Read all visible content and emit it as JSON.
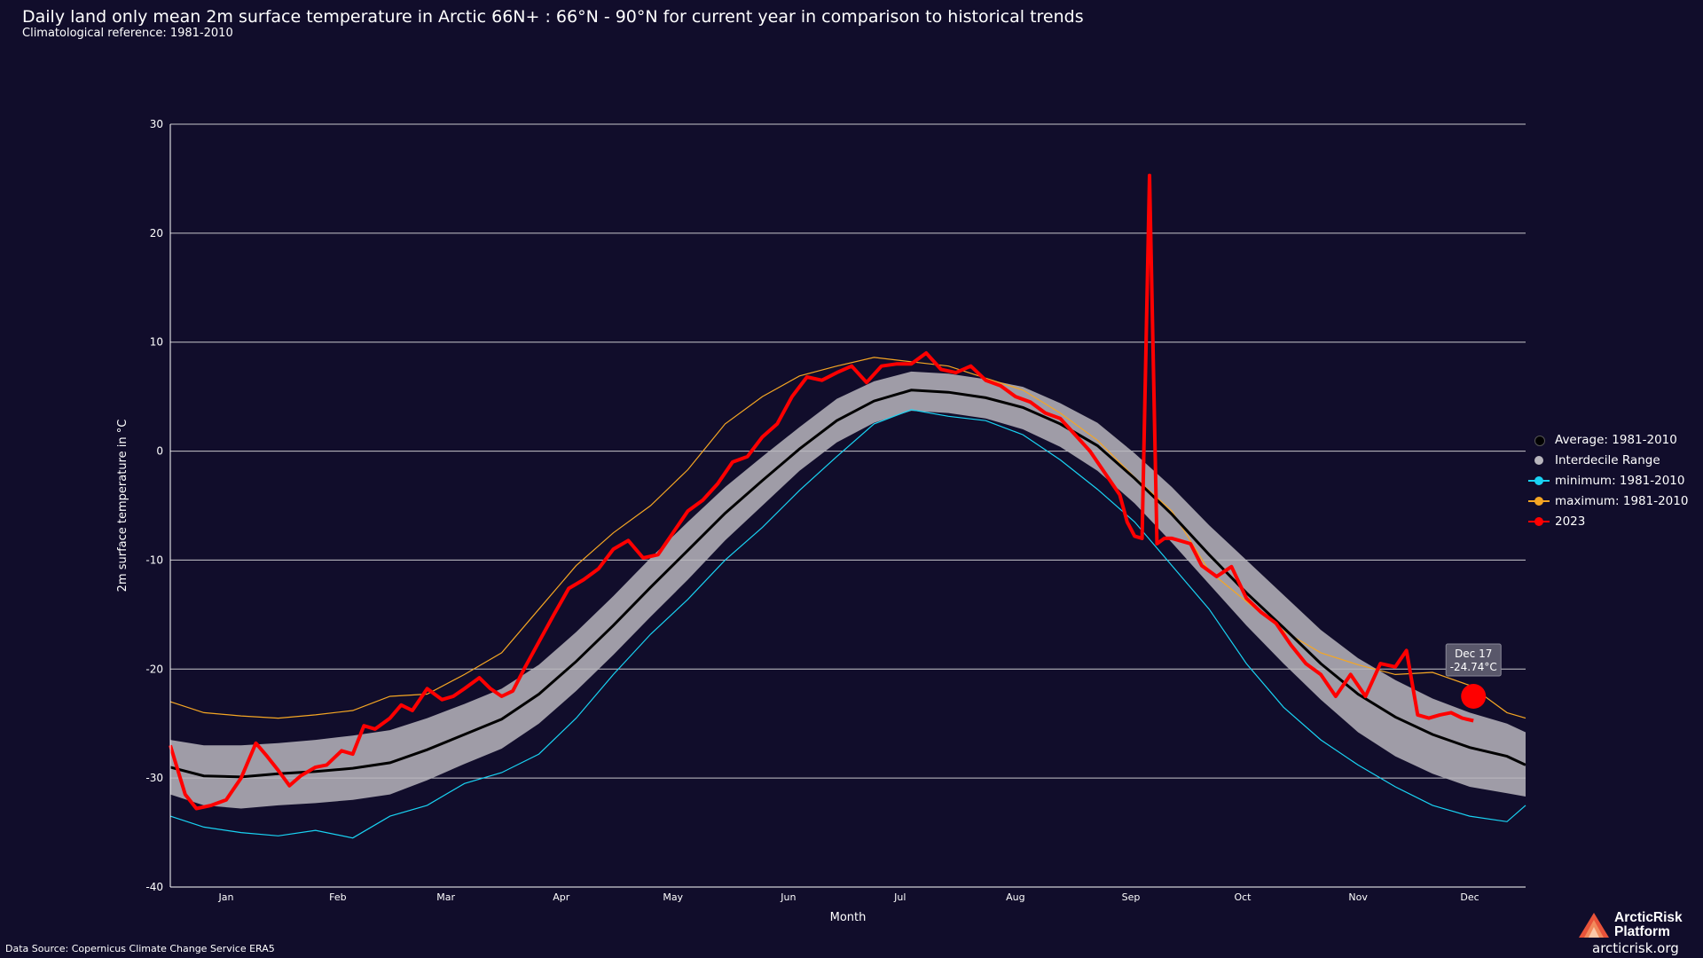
{
  "header": {
    "title": "Daily land only mean 2m surface temperature in Arctic 66N+ : 66°N - 90°N for current year in comparison to historical trends",
    "subtitle": "Climatological reference: 1981-2010"
  },
  "legend": [
    {
      "label": "Average: 1981-2010",
      "color": "#000000",
      "style": "dot"
    },
    {
      "label": "Interdecile Range",
      "color": "#b8b6bd",
      "style": "dot"
    },
    {
      "label": "minimum: 1981-2010",
      "color": "#19d3f3",
      "style": "dash-dot"
    },
    {
      "label": "maximum: 1981-2010",
      "color": "#f5a623",
      "style": "dash-dot"
    },
    {
      "label": "2023",
      "color": "#ff0000",
      "style": "dash-dot"
    }
  ],
  "footer": {
    "source": "Data Source: Copernicus Climate Change Service ERA5",
    "brand_line1": "ArcticRisk",
    "brand_line2": "Platform",
    "url": "arcticrisk.org"
  },
  "tooltip": {
    "date": "Dec 17",
    "value": "-24.74°C"
  },
  "chart_data": {
    "type": "line",
    "xlabel": "Month",
    "ylabel": "2m surface temperature in °C",
    "ylim": [
      -40,
      30
    ],
    "yticks": [
      -40,
      -30,
      -20,
      -10,
      0,
      10,
      20,
      30
    ],
    "xlim_day": [
      1,
      365
    ],
    "month_ticks": [
      {
        "label": "Jan",
        "day": 16
      },
      {
        "label": "Feb",
        "day": 46
      },
      {
        "label": "Mar",
        "day": 75
      },
      {
        "label": "Apr",
        "day": 106
      },
      {
        "label": "May",
        "day": 136
      },
      {
        "label": "Jun",
        "day": 167
      },
      {
        "label": "Jul",
        "day": 197
      },
      {
        "label": "Aug",
        "day": 228
      },
      {
        "label": "Sep",
        "day": 259
      },
      {
        "label": "Oct",
        "day": 289
      },
      {
        "label": "Nov",
        "day": 320
      },
      {
        "label": "Dec",
        "day": 350
      }
    ],
    "colors": {
      "average": "#000000",
      "band": "#b8b6bd",
      "minimum": "#19d3f3",
      "maximum": "#f5a623",
      "current": "#ff0000",
      "grid": "#e8e8e8"
    },
    "series": [
      {
        "name": "Average: 1981-2010",
        "x": [
          1,
          10,
          20,
          30,
          40,
          50,
          60,
          70,
          80,
          90,
          100,
          110,
          120,
          130,
          140,
          150,
          160,
          170,
          180,
          190,
          200,
          210,
          220,
          230,
          240,
          250,
          260,
          270,
          280,
          290,
          300,
          310,
          320,
          330,
          340,
          350,
          360,
          365
        ],
        "values": [
          -29,
          -29.8,
          -29.9,
          -29.6,
          -29.4,
          -29.1,
          -28.6,
          -27.4,
          -26,
          -24.6,
          -22.3,
          -19.3,
          -16,
          -12.5,
          -9.1,
          -5.7,
          -2.7,
          0.2,
          2.8,
          4.6,
          5.6,
          5.4,
          4.9,
          4,
          2.5,
          0.5,
          -2.5,
          -5.8,
          -9.5,
          -13,
          -16.2,
          -19.5,
          -22.3,
          -24.4,
          -26,
          -27.2,
          -28,
          -28.8
        ]
      },
      {
        "name": "Interdecile Range (lower)",
        "x": [
          1,
          10,
          20,
          30,
          40,
          50,
          60,
          70,
          80,
          90,
          100,
          110,
          120,
          130,
          140,
          150,
          160,
          170,
          180,
          190,
          200,
          210,
          220,
          230,
          240,
          250,
          260,
          270,
          280,
          290,
          300,
          310,
          320,
          330,
          340,
          350,
          360,
          365
        ],
        "values": [
          -31.5,
          -32.5,
          -32.8,
          -32.5,
          -32.3,
          -32,
          -31.5,
          -30.2,
          -28.7,
          -27.3,
          -25,
          -22,
          -18.7,
          -15.2,
          -11.8,
          -8.2,
          -5,
          -1.8,
          0.8,
          2.6,
          3.7,
          3.5,
          3,
          2,
          0.4,
          -1.8,
          -4.8,
          -8.4,
          -12.2,
          -16,
          -19.5,
          -22.8,
          -25.8,
          -28,
          -29.6,
          -30.8,
          -31.4,
          -31.7
        ]
      },
      {
        "name": "Interdecile Range (upper)",
        "x": [
          1,
          10,
          20,
          30,
          40,
          50,
          60,
          70,
          80,
          90,
          100,
          110,
          120,
          130,
          140,
          150,
          160,
          170,
          180,
          190,
          200,
          210,
          220,
          230,
          240,
          250,
          260,
          270,
          280,
          290,
          300,
          310,
          320,
          330,
          340,
          350,
          360,
          365
        ],
        "values": [
          -26.5,
          -27,
          -27,
          -26.8,
          -26.5,
          -26.1,
          -25.6,
          -24.5,
          -23.2,
          -21.8,
          -19.6,
          -16.6,
          -13.3,
          -9.8,
          -6.5,
          -3.3,
          -0.5,
          2.2,
          4.8,
          6.4,
          7.3,
          7.1,
          6.6,
          5.9,
          4.4,
          2.6,
          -0.2,
          -3.3,
          -6.8,
          -10,
          -13.2,
          -16.4,
          -19,
          -21,
          -22.7,
          -24,
          -25,
          -25.8
        ]
      },
      {
        "name": "minimum: 1981-2010",
        "x": [
          1,
          10,
          20,
          30,
          40,
          50,
          60,
          70,
          80,
          90,
          100,
          110,
          120,
          130,
          140,
          150,
          160,
          170,
          180,
          190,
          200,
          210,
          220,
          230,
          240,
          250,
          260,
          270,
          280,
          290,
          300,
          310,
          320,
          330,
          340,
          350,
          360,
          365
        ],
        "values": [
          -33.5,
          -34.5,
          -35,
          -35.3,
          -34.8,
          -35.5,
          -33.5,
          -32.5,
          -30.5,
          -29.5,
          -27.8,
          -24.5,
          -20.5,
          -16.8,
          -13.6,
          -10,
          -7,
          -3.6,
          -0.5,
          2.5,
          3.8,
          3.2,
          2.8,
          1.5,
          -0.8,
          -3.5,
          -6.5,
          -10.5,
          -14.5,
          -19.5,
          -23.5,
          -26.5,
          -28.8,
          -30.8,
          -32.5,
          -33.5,
          -34,
          -32.5
        ]
      },
      {
        "name": "maximum: 1981-2010",
        "x": [
          1,
          10,
          20,
          30,
          40,
          50,
          60,
          70,
          80,
          90,
          100,
          110,
          120,
          130,
          140,
          150,
          160,
          170,
          180,
          190,
          200,
          210,
          220,
          230,
          240,
          250,
          260,
          270,
          280,
          290,
          300,
          310,
          320,
          330,
          340,
          350,
          360,
          365
        ],
        "values": [
          -23,
          -24,
          -24.3,
          -24.5,
          -24.2,
          -23.8,
          -22.5,
          -22.3,
          -20.5,
          -18.5,
          -14.5,
          -10.5,
          -7.5,
          -5,
          -1.7,
          2.5,
          5,
          6.9,
          7.8,
          8.6,
          8.2,
          7.8,
          6.7,
          5.6,
          3.5,
          1,
          -2.4,
          -5.5,
          -11,
          -13.8,
          -16.5,
          -18.5,
          -19.6,
          -20.5,
          -20.3,
          -21.5,
          -24,
          -24.5
        ]
      },
      {
        "name": "2023",
        "x": [
          1,
          5,
          8,
          12,
          16,
          20,
          24,
          27,
          30,
          33,
          36,
          40,
          43,
          47,
          50,
          53,
          56,
          60,
          63,
          66,
          70,
          74,
          77,
          80,
          84,
          87,
          90,
          93,
          96,
          100,
          104,
          108,
          112,
          116,
          120,
          124,
          128,
          132,
          136,
          140,
          144,
          148,
          152,
          156,
          160,
          164,
          168,
          172,
          176,
          180,
          184,
          188,
          192,
          196,
          200,
          204,
          208,
          212,
          216,
          220,
          224,
          228,
          232,
          236,
          240,
          244,
          248,
          252,
          256,
          258,
          260,
          262,
          264,
          266,
          268,
          270,
          272,
          275,
          278,
          282,
          286,
          290,
          294,
          298,
          302,
          306,
          310,
          314,
          318,
          322,
          326,
          330,
          333,
          336,
          339,
          342,
          345,
          348,
          351
        ],
        "values": [
          -27,
          -31.5,
          -32.8,
          -32.5,
          -32,
          -30,
          -26.8,
          -28,
          -29.3,
          -30.7,
          -29.8,
          -29,
          -28.8,
          -27.5,
          -27.8,
          -25.2,
          -25.5,
          -24.5,
          -23.3,
          -23.8,
          -21.8,
          -22.8,
          -22.5,
          -21.8,
          -20.8,
          -21.8,
          -22.5,
          -22,
          -20,
          -17.5,
          -15,
          -12.6,
          -11.8,
          -10.8,
          -9,
          -8.2,
          -9.8,
          -9.5,
          -7.5,
          -5.5,
          -4.5,
          -3,
          -1,
          -0.5,
          1.3,
          2.5,
          5,
          6.8,
          6.5,
          7.2,
          7.8,
          6.3,
          7.8,
          8,
          8,
          9,
          7.5,
          7.2,
          7.8,
          6.5,
          6,
          5,
          4.5,
          3.5,
          3,
          1.5,
          0,
          -2,
          -4,
          -6.5,
          -7.8,
          -8,
          25.3,
          -8.5,
          -8,
          -8,
          -8.2,
          -8.5,
          -10.5,
          -11.5,
          -10.6,
          -13.5,
          -14.8,
          -15.8,
          -17.8,
          -19.5,
          -20.5,
          -22.5,
          -20.5,
          -22.5,
          -19.5,
          -19.8,
          -18.3,
          -24.2,
          -24.5,
          -24.2,
          -24,
          -24.5,
          -24.74
        ]
      }
    ]
  }
}
